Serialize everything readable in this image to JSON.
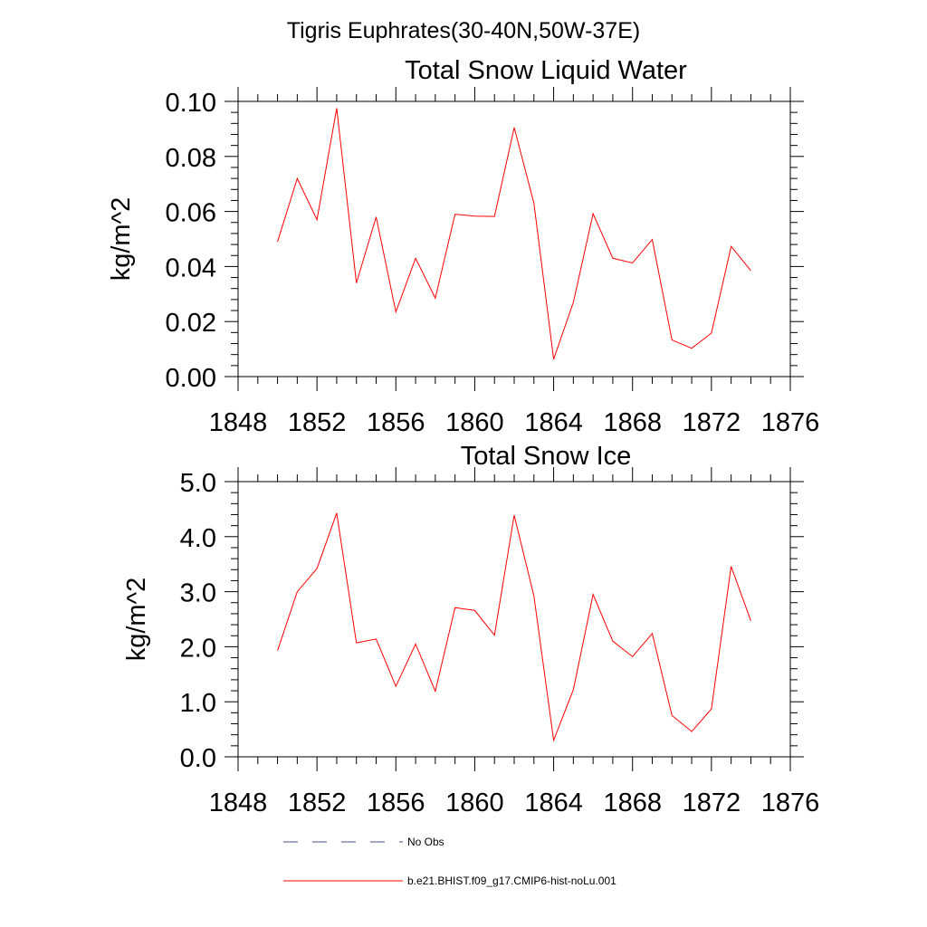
{
  "main_title": "Tigris Euphrates(30-40N,50W-37E)",
  "chart_data": [
    {
      "type": "line",
      "title": "Total Snow Liquid Water",
      "xlabel": "",
      "ylabel": "kg/m^2",
      "xlim": [
        1848,
        1876
      ],
      "ylim": [
        0.0,
        0.1
      ],
      "x_ticks": [
        1848,
        1852,
        1856,
        1860,
        1864,
        1868,
        1872,
        1876
      ],
      "x_tick_labels": [
        "1848",
        "1852",
        "1856",
        "1860",
        "1864",
        "1868",
        "1872",
        "1876"
      ],
      "y_ticks": [
        0.0,
        0.02,
        0.04,
        0.06,
        0.08,
        0.1
      ],
      "y_tick_labels": [
        "0.00",
        "0.02",
        "0.04",
        "0.06",
        "0.08",
        "0.10"
      ],
      "grid": false,
      "series": [
        {
          "name": "b.e21.BHIST.f09_g17.CMIP6-hist-noLu.001",
          "color": "#ff0000",
          "x": [
            1850,
            1851,
            1852,
            1853,
            1854,
            1855,
            1856,
            1857,
            1858,
            1859,
            1860,
            1861,
            1862,
            1863,
            1864,
            1865,
            1866,
            1867,
            1868,
            1869,
            1870,
            1871,
            1872,
            1873,
            1874
          ],
          "values": [
            0.049,
            0.072,
            0.057,
            0.0975,
            0.034,
            0.058,
            0.0235,
            0.043,
            0.0285,
            0.059,
            0.0583,
            0.0582,
            0.0905,
            0.063,
            0.0063,
            0.027,
            0.0592,
            0.043,
            0.0413,
            0.0498,
            0.0133,
            0.0103,
            0.0158,
            0.0473,
            0.0385
          ]
        }
      ]
    },
    {
      "type": "line",
      "title": "Total Snow Ice",
      "xlabel": "",
      "ylabel": "kg/m^2",
      "xlim": [
        1848,
        1876
      ],
      "ylim": [
        0.0,
        5.0
      ],
      "x_ticks": [
        1848,
        1852,
        1856,
        1860,
        1864,
        1868,
        1872,
        1876
      ],
      "x_tick_labels": [
        "1848",
        "1852",
        "1856",
        "1860",
        "1864",
        "1868",
        "1872",
        "1876"
      ],
      "y_ticks": [
        0.0,
        1.0,
        2.0,
        3.0,
        4.0,
        5.0
      ],
      "y_tick_labels": [
        "0.0",
        "1.0",
        "2.0",
        "3.0",
        "4.0",
        "5.0"
      ],
      "grid": false,
      "series": [
        {
          "name": "b.e21.BHIST.f09_g17.CMIP6-hist-noLu.001",
          "color": "#ff0000",
          "x": [
            1850,
            1851,
            1852,
            1853,
            1854,
            1855,
            1856,
            1857,
            1858,
            1859,
            1860,
            1861,
            1862,
            1863,
            1864,
            1865,
            1866,
            1867,
            1868,
            1869,
            1870,
            1871,
            1872,
            1873,
            1874
          ],
          "values": [
            1.93,
            3.0,
            3.42,
            4.43,
            2.07,
            2.14,
            1.28,
            2.05,
            1.19,
            2.71,
            2.66,
            2.21,
            4.39,
            2.92,
            0.3,
            1.22,
            2.95,
            2.1,
            1.82,
            2.24,
            0.75,
            0.46,
            0.87,
            3.46,
            2.47
          ]
        }
      ]
    }
  ],
  "legend": {
    "placement": "bottom",
    "items": [
      {
        "label": "No Obs",
        "color": "#4a4a8a",
        "style": "dashed"
      },
      {
        "label": "b.e21.BHIST.f09_g17.CMIP6-hist-noLu.001",
        "color": "#ff0000",
        "style": "solid"
      }
    ]
  }
}
